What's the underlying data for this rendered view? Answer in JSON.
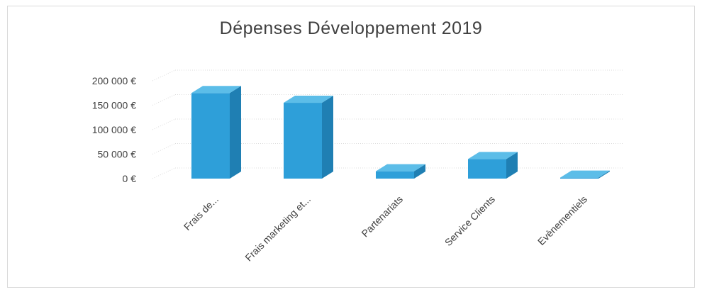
{
  "chart_data": {
    "type": "bar",
    "title": "Dépenses Développement 2019",
    "xlabel": "",
    "ylabel": "",
    "categories": [
      "Frais de...",
      "Frais marketing et...",
      "Partenariats",
      "Service Clients",
      "Evènementiels"
    ],
    "values": [
      175000,
      155000,
      15000,
      40000,
      2000
    ],
    "ylim": [
      0,
      200000
    ],
    "y_ticks": [
      0,
      50000,
      100000,
      150000,
      200000
    ],
    "y_tick_labels": [
      "0 €",
      "50 000 €",
      "100 000 €",
      "150 000 €",
      "200 000 €"
    ],
    "grid": true,
    "legend": "none",
    "bar_3d": true,
    "colors": {
      "bar_front": "#2e9fd9",
      "bar_top": "#5cbde8",
      "bar_side": "#1f7fb3",
      "grid": "#dcdcdc",
      "text": "#404040"
    }
  }
}
